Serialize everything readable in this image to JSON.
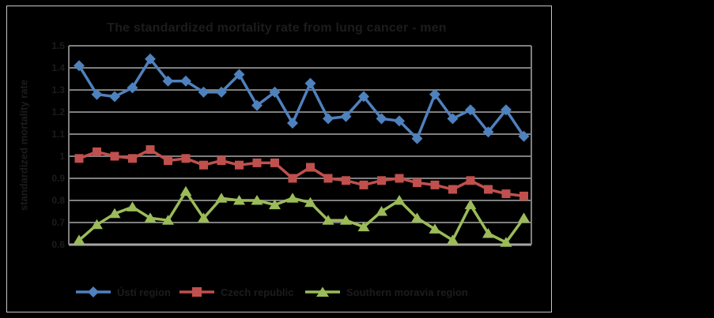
{
  "chart_data": {
    "type": "line",
    "title": "The standardized mortality rate from lung cancer - men",
    "ylabel": "standardized mortality rate",
    "xlabel": "",
    "x_tick_labels_visible": false,
    "n_points": 26,
    "ylim": [
      0.6,
      1.5
    ],
    "y_ticks": [
      "1.5",
      "1.4",
      "1.3",
      "1.2",
      "1.1",
      "1",
      "0.9",
      "0.8",
      "0.7",
      "0.6"
    ],
    "grid": "horizontal",
    "legend_position": "bottom",
    "series": [
      {
        "name": "Ústí region",
        "marker": "diamond",
        "color": "#4F81BD",
        "values": [
          1.41,
          1.28,
          1.27,
          1.31,
          1.44,
          1.34,
          1.34,
          1.29,
          1.29,
          1.37,
          1.23,
          1.29,
          1.15,
          1.33,
          1.17,
          1.18,
          1.27,
          1.17,
          1.16,
          1.08,
          1.28,
          1.17,
          1.21,
          1.11,
          1.21,
          1.09
        ]
      },
      {
        "name": "Czech republic",
        "marker": "square",
        "color": "#C0504D",
        "values": [
          0.99,
          1.02,
          1.0,
          0.99,
          1.03,
          0.98,
          0.99,
          0.96,
          0.98,
          0.96,
          0.97,
          0.97,
          0.9,
          0.95,
          0.9,
          0.89,
          0.87,
          0.89,
          0.9,
          0.88,
          0.87,
          0.85,
          0.89,
          0.85,
          0.83,
          0.82
        ]
      },
      {
        "name": "Southern moravia region",
        "marker": "triangle",
        "color": "#9BBB59",
        "values": [
          0.62,
          0.69,
          0.74,
          0.77,
          0.72,
          0.71,
          0.84,
          0.72,
          0.81,
          0.8,
          0.8,
          0.78,
          0.81,
          0.79,
          0.71,
          0.71,
          0.68,
          0.75,
          0.8,
          0.72,
          0.67,
          0.62,
          0.78,
          0.65,
          0.61,
          0.72
        ]
      }
    ],
    "colors": {
      "grid": "#7f7f7f",
      "axis": "#a6a6a6",
      "frame": "#c4c4c4",
      "text": "#1c1c1c",
      "background": "#000000"
    }
  }
}
